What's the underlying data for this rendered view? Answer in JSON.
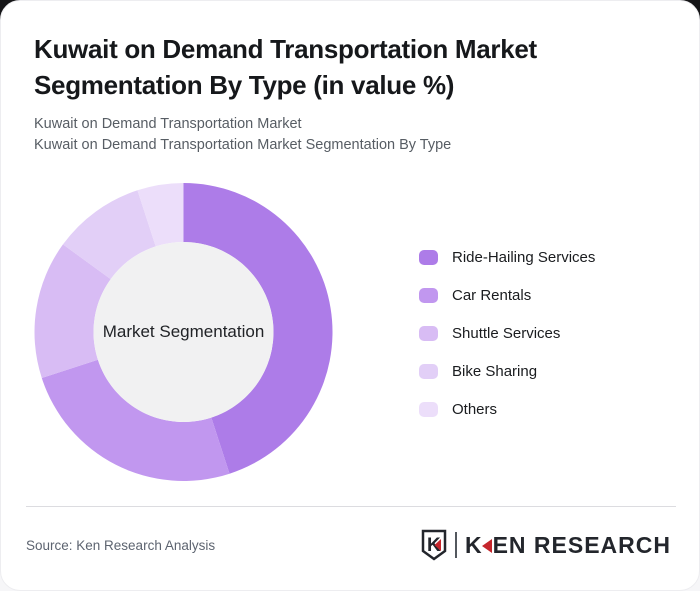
{
  "header": {
    "title": "Kuwait on Demand Transportation Market Segmentation By Type (in value %)",
    "subtitle_lines": [
      "Kuwait on Demand Transportation Market",
      "Kuwait on Demand Transportation Market Segmentation By Type"
    ]
  },
  "chart_data": {
    "type": "pie",
    "donut": true,
    "title": "Kuwait on Demand Transportation Market Segmentation By Type (in value %)",
    "center_label": "Market Segmentation",
    "categories": [
      "Ride-Hailing Services",
      "Car Rentals",
      "Shuttle Services",
      "Bike Sharing",
      "Others"
    ],
    "values": [
      45,
      25,
      15,
      10,
      5
    ],
    "unit": "%",
    "colors": [
      "#ad7ce8",
      "#c197ef",
      "#d8bcf4",
      "#e2cff7",
      "#ecdefa"
    ],
    "inner_circle_color": "#f1f1f2",
    "start_angle_deg": 0,
    "direction": "clockwise",
    "legend_position": "right"
  },
  "footer": {
    "source": "Source: Ken Research Analysis",
    "logo": {
      "badge_letter": "K",
      "brand_k": "K",
      "brand_rest": "EN RESEARCH",
      "red": "#c5262c",
      "dark": "#23262c"
    }
  }
}
